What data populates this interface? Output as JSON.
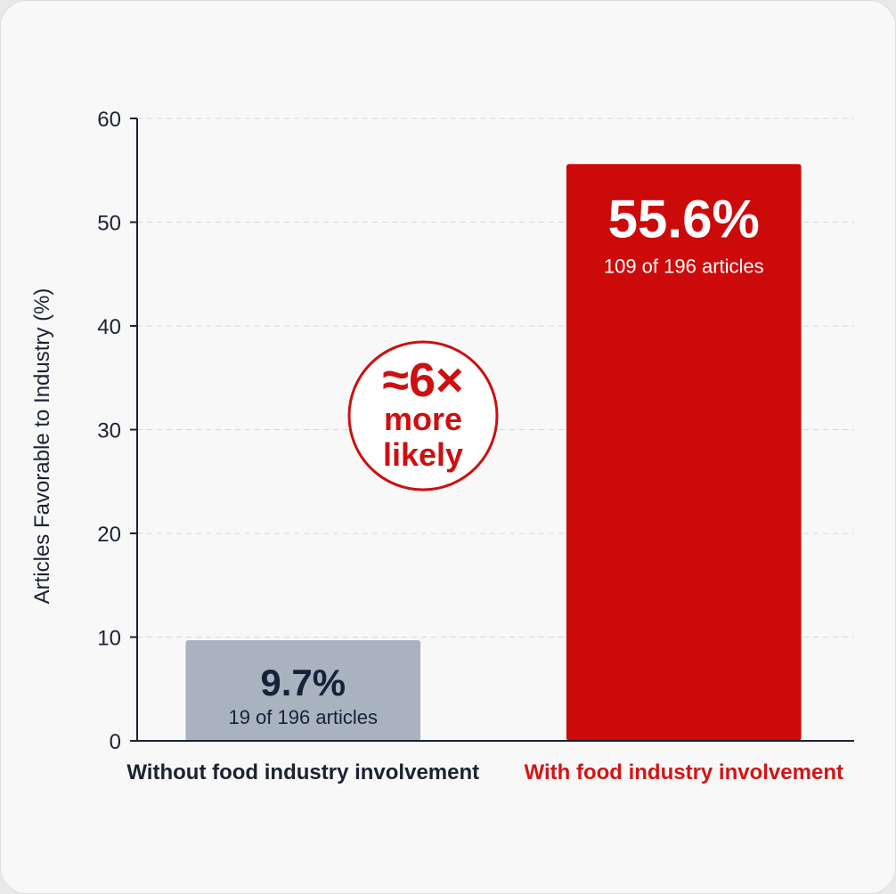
{
  "chart_data": {
    "type": "bar",
    "ylabel": "Articles Favorable to Industry (%)",
    "ylim": [
      0,
      60
    ],
    "yticks": [
      0,
      10,
      20,
      30,
      40,
      50,
      60
    ],
    "grid": true,
    "categories": [
      "Without food industry involvement",
      "With food industry involvement"
    ],
    "values": [
      9.7,
      55.6
    ],
    "value_labels": [
      "9.7%",
      "55.6%"
    ],
    "sub_labels": [
      "19 of 196 articles",
      "109 of 196 articles"
    ],
    "colors": [
      "#a9b3bf",
      "#cc0a0a"
    ],
    "category_label_colors": [
      "#1a2233",
      "#d41414"
    ],
    "value_label_colors": [
      "#16213a",
      "#ffffff"
    ],
    "annotation": {
      "line1": "≈6×",
      "line2": "more",
      "line3": "likely",
      "color": "#cc1010"
    }
  }
}
